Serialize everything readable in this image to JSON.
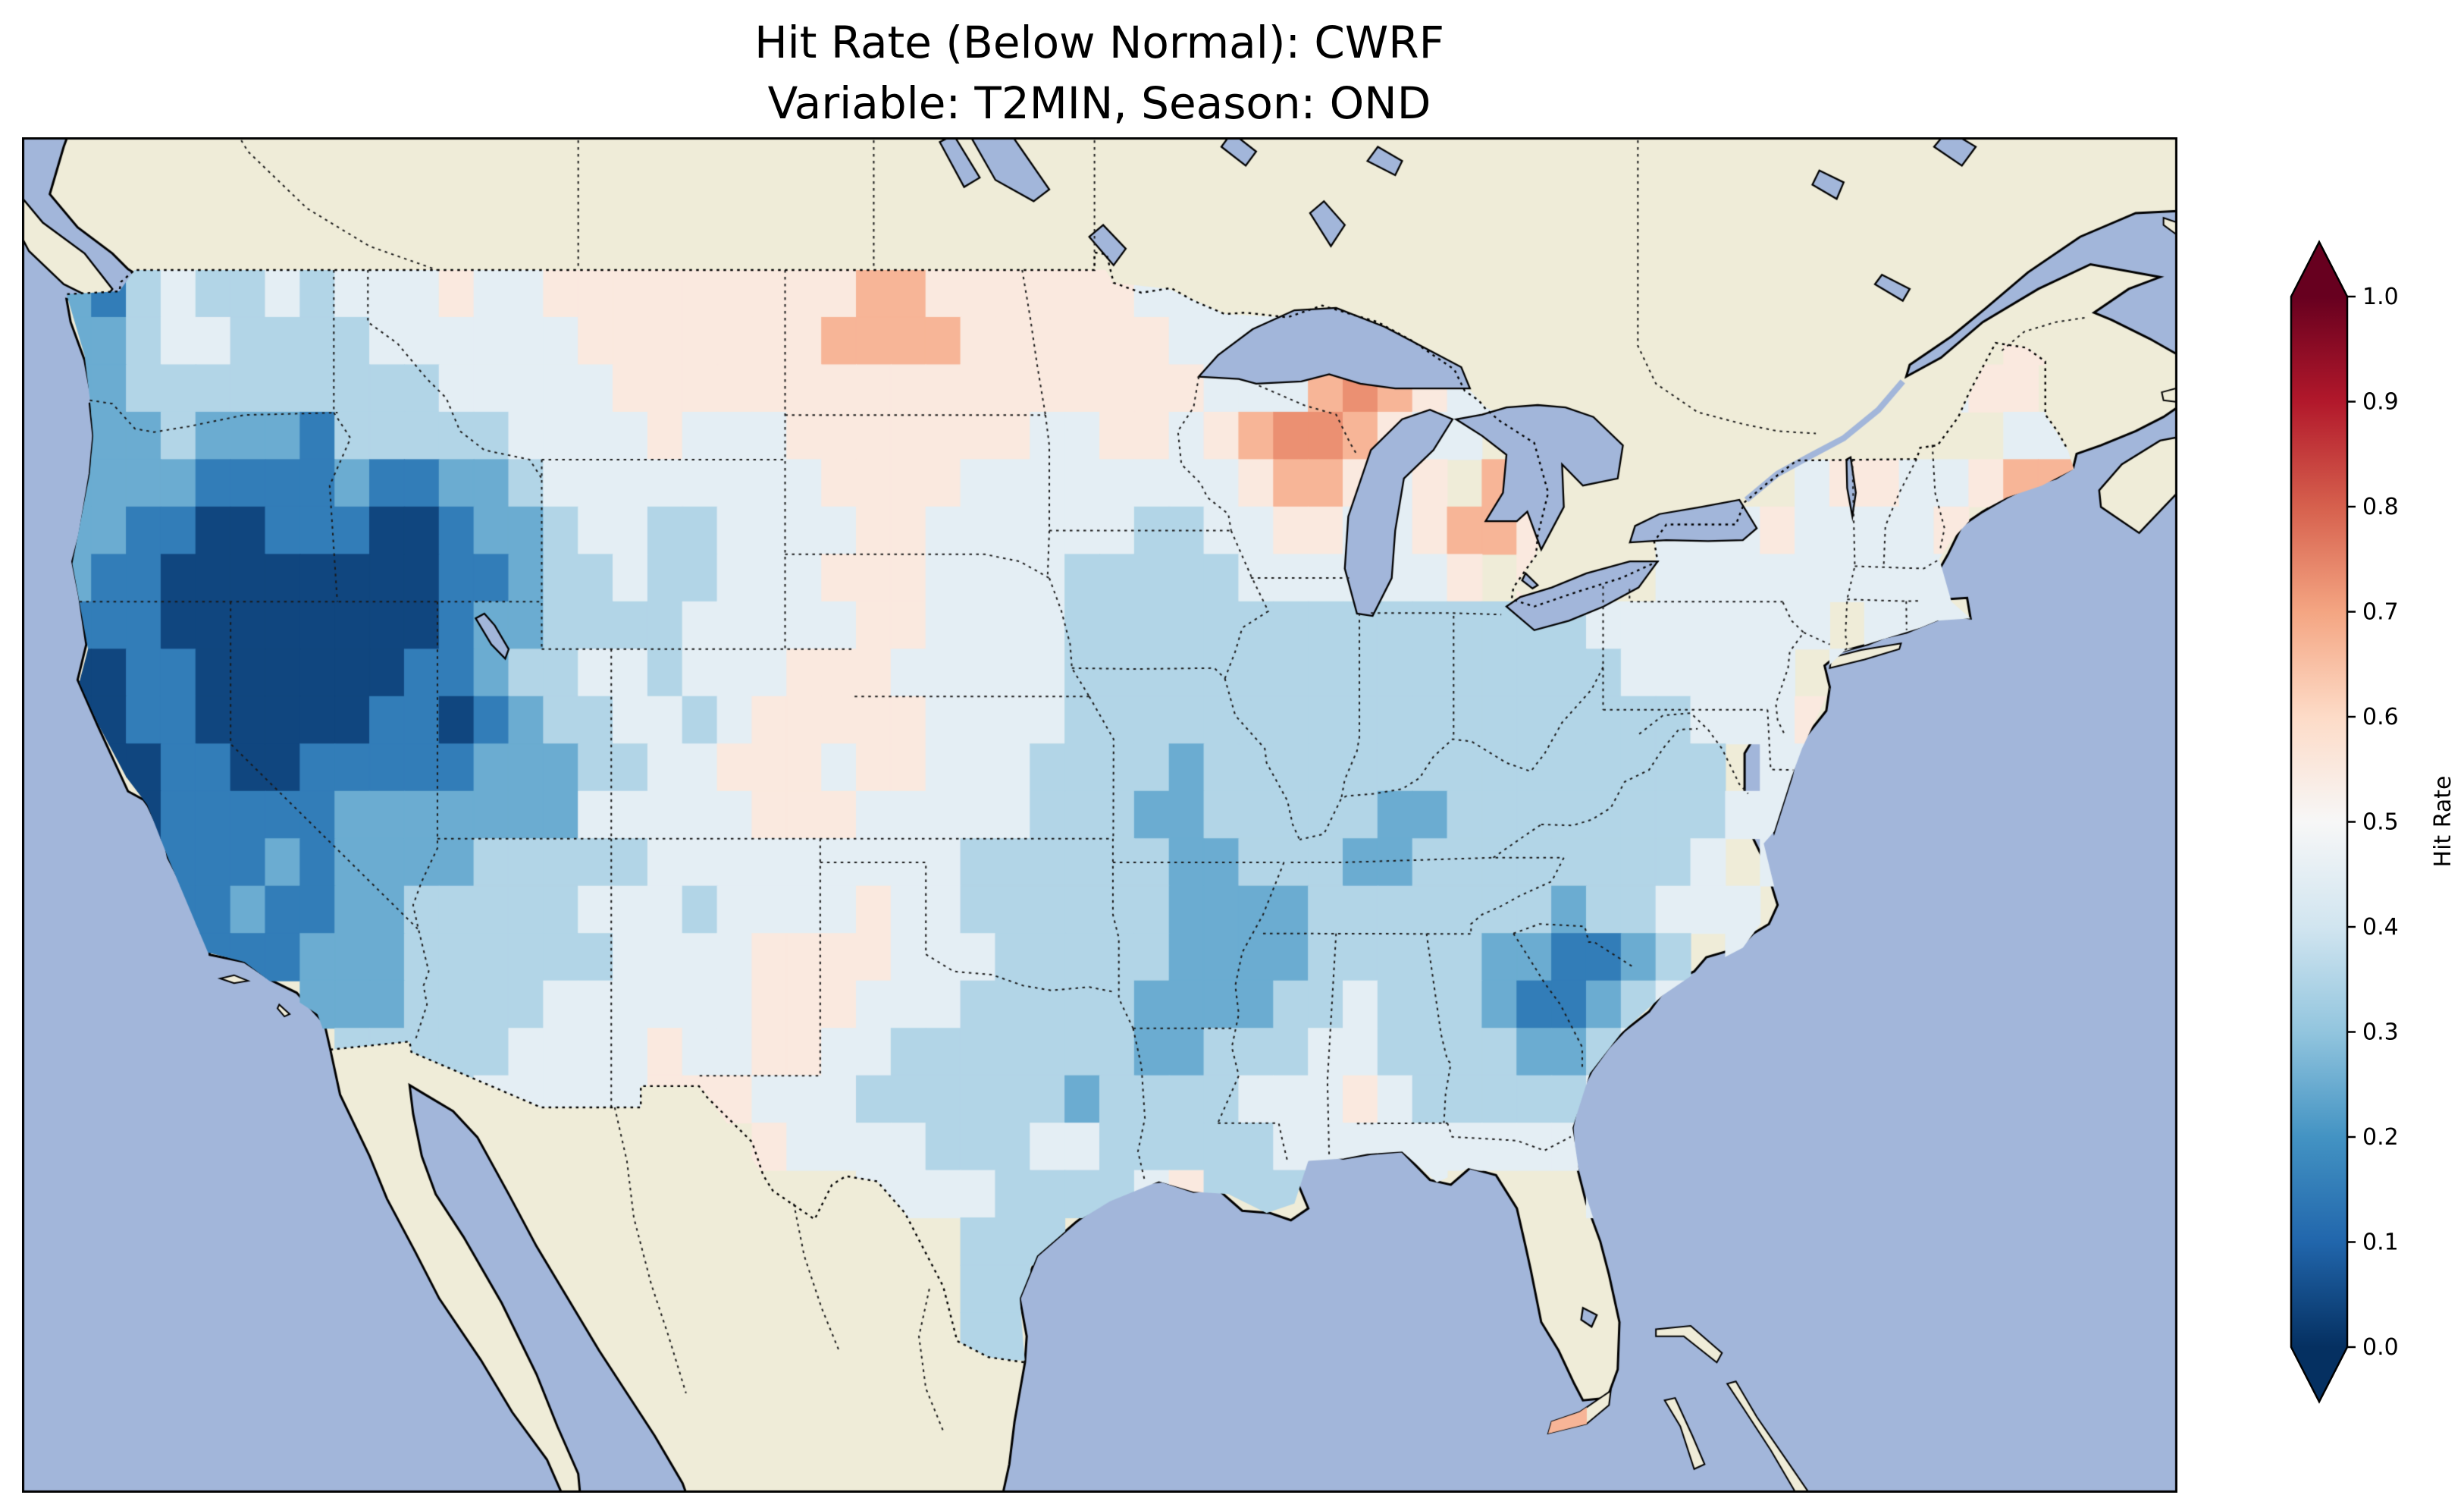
{
  "title": {
    "line1": "Hit Rate (Below Normal): CWRF",
    "line2": "Variable: T2MIN, Season: OND"
  },
  "map": {
    "ocean_color": "#a2b6da",
    "land_color": "#efecd8",
    "coast_color": "#000000",
    "border_line_color": "#1a1a1a"
  },
  "colorbar": {
    "label": "Hit Rate",
    "ticks": [
      "1.0",
      "0.9",
      "0.8",
      "0.7",
      "0.6",
      "0.5",
      "0.4",
      "0.3",
      "0.2",
      "0.1",
      "0.0"
    ],
    "over_color": "#67001f",
    "under_color": "#053061",
    "cmap_rdbu": [
      "#67001f",
      "#b2182b",
      "#d6604d",
      "#f4a582",
      "#fddbc7",
      "#f7f7f7",
      "#d1e5f0",
      "#92c5de",
      "#4393c3",
      "#2166ac",
      "#053061"
    ]
  },
  "chart_data": {
    "type": "heatmap",
    "title": "Hit Rate (Below Normal): CWRF",
    "subtitle": "Variable: T2MIN, Season: OND",
    "metric": "Hit Rate (Below Normal)",
    "model": "CWRF",
    "variable": "T2MIN",
    "season": "OND",
    "colormap": "RdBu_r",
    "vmin": 0.0,
    "vmax": 1.0,
    "colorbar_ticks": [
      1.0,
      0.9,
      0.8,
      0.7,
      0.6,
      0.5,
      0.4,
      0.3,
      0.2,
      0.1,
      0.0
    ],
    "legend_position": "right",
    "region": "Contiguous United States (data masked outside CONUS)",
    "notable_features": [
      {
        "region": "Great Basin: Nevada / W Utah / SE Oregon / S Idaho",
        "hit_rate": "0.0-0.1"
      },
      {
        "region": "Coastal and interior California",
        "hit_rate": "0.0-0.15"
      },
      {
        "region": "Northern Wisconsin",
        "hit_rate": "0.70-0.75"
      },
      {
        "region": "Central Lower Michigan",
        "hit_rate": "0.65-0.70"
      },
      {
        "region": "North-central North Dakota",
        "hit_rate": "0.60-0.70"
      },
      {
        "region": "Coastal Maine",
        "hit_rate": "0.60-0.70"
      },
      {
        "region": "Georgia / South Carolina border",
        "hit_rate": "0.10-0.20"
      },
      {
        "region": "Central Great Plains (NE/KS/SD)",
        "hit_rate": "0.45-0.55"
      },
      {
        "region": "Midwest, Ohio Valley and South",
        "hit_rate": "0.25-0.35"
      },
      {
        "region": "Florida Keys cells",
        "hit_rate": "0.6-0.7"
      }
    ],
    "grid": {
      "description": "Approximate 1-degree hit-rate field read from the plot; char codes map to values, '.' = masked/no data",
      "lon_west": -125,
      "lon_east": -67,
      "lat_north": 49,
      "lat_south": 24,
      "cell_deg": 1,
      "value_codes": {
        "0": 0.04,
        "1": 0.15,
        "2": 0.25,
        "3": 0.35,
        "4": 0.45,
        "5": 0.55,
        "6": 0.67,
        "7": 0.73,
        ".": null
      },
      "rows": [
        "2134334344454455555555566555555444444....................",
        "2234433334444445555555666655555544444...................55",
        "22333333333444445555555555555555544467654444..........455",
        "22232221333334444544455555554455456776544 4........ ....4455",
        "2222111121122344444444555544444444566545 65.......455445665",
        "2211001110012234433444455444444334455445665...444544445...",
        "21100000000112334334445554444333334444445 54..4444444444...",
        "111000000001223333444445544443333333333333334444444 44444..",
        "00110000001123344344455544444333333333333333344444 4......",
        "0011000001101233443455555444433333333333333333344454......",
        "000110011111222334455545544433332333333333333333 444......",
        "100111112222222444445554444433322333332233333333444.......",
        "100111212222333334444444443333332233322333333334 44444.....",
        "1111121122333334443444454433333322223333333233444.........",
        "....1112223333334444555544433333222233333221123 44.........",
        ".......2223333444444555444333332222334333211234 4..........",
        "........33333444454455443333333223334433332234............",
        "..........33444445554443333332333344454333334.............",
        "....................5444433344333334444444444333..........",
        "....................  .444433334533344 4....44 33............",
        "..........................333................4434.........",
        "..........................33.................4344.........",
        "..........................33..................444.........",
        "..........................3....................45.........",
        "..........................................66..............."
      ]
    }
  }
}
